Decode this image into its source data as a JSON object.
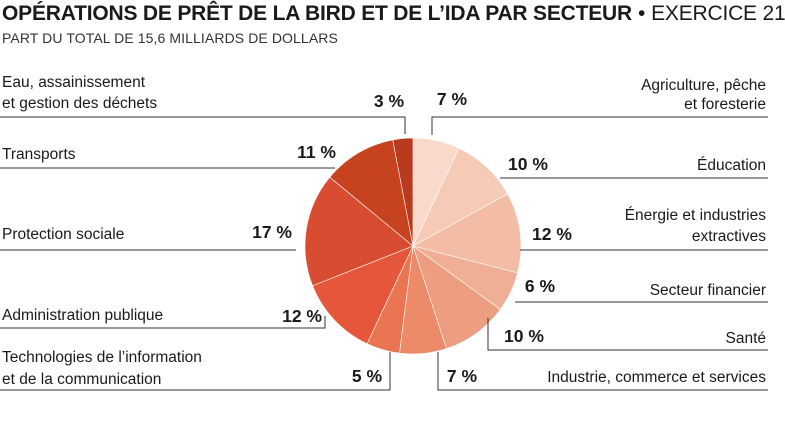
{
  "header": {
    "title": "OPÉRATIONS DE PRÊT DE LA BIRD ET DE L’IDA PAR SECTEUR",
    "separator": "•",
    "period": "EXERCICE 21",
    "subtitle": "PART DU TOTAL DE 15,6 MILLIARDS DE DOLLARS"
  },
  "chart_data": {
    "type": "pie",
    "title": "OPÉRATIONS DE PRÊT DE LA BIRD ET DE L’IDA PAR SECTEUR • EXERCICE 21",
    "subtitle": "PART DU TOTAL DE 15,6 MILLIARDS DE DOLLARS",
    "unit": "%",
    "start": "12 o'clock",
    "direction": "clockwise",
    "slices": [
      {
        "label": [
          "Agriculture, pêche",
          "et foresterie"
        ],
        "value": 7,
        "display": "7 %",
        "color": "#f8d9cc"
      },
      {
        "label": [
          "Éducation"
        ],
        "value": 10,
        "display": "10 %",
        "color": "#f5cbb7"
      },
      {
        "label": [
          "Énergie et industries",
          "extractives"
        ],
        "value": 12,
        "display": "12 %",
        "color": "#f3bda5"
      },
      {
        "label": [
          "Secteur financier"
        ],
        "value": 6,
        "display": "6 %",
        "color": "#f0ae94"
      },
      {
        "label": [
          "Santé"
        ],
        "value": 10,
        "display": "10 %",
        "color": "#ee9e80"
      },
      {
        "label": [
          "Industrie, commerce et services"
        ],
        "value": 7,
        "display": "7 %",
        "color": "#ec8a6a"
      },
      {
        "label": [
          "Technologies de l’information",
          "et de la communication"
        ],
        "value": 5,
        "display": "5 %",
        "color": "#ea7552"
      },
      {
        "label": [
          "Administration publique"
        ],
        "value": 12,
        "display": "12 %",
        "color": "#e6563a"
      },
      {
        "label": [
          "Protection sociale"
        ],
        "value": 17,
        "display": "17 %",
        "color": "#d84d31"
      },
      {
        "label": [
          "Transports"
        ],
        "value": 11,
        "display": "11 %",
        "color": "#c7431f"
      },
      {
        "label": [
          "Eau, assainissement",
          "et gestion des déchets"
        ],
        "value": 3,
        "display": "3 %",
        "color": "#b93a1c"
      }
    ]
  }
}
